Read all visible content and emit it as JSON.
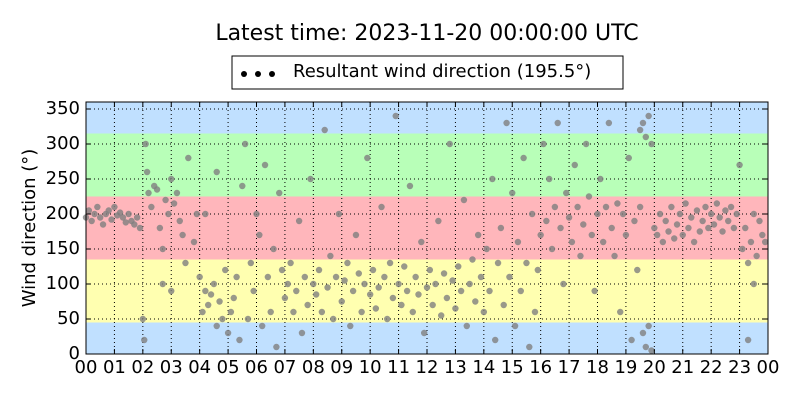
{
  "chart_data": {
    "type": "scatter",
    "title": "Latest time: 2023-11-20 00:00:00 UTC",
    "ylabel": "Wind direction (°)",
    "xlim": [
      0,
      24
    ],
    "ylim": [
      0,
      360
    ],
    "xticks": [
      {
        "value": 0,
        "label": "00"
      },
      {
        "value": 1,
        "label": "01"
      },
      {
        "value": 2,
        "label": "02"
      },
      {
        "value": 3,
        "label": "03"
      },
      {
        "value": 4,
        "label": "04"
      },
      {
        "value": 5,
        "label": "05"
      },
      {
        "value": 6,
        "label": "06"
      },
      {
        "value": 7,
        "label": "07"
      },
      {
        "value": 8,
        "label": "08"
      },
      {
        "value": 9,
        "label": "09"
      },
      {
        "value": 10,
        "label": "10"
      },
      {
        "value": 11,
        "label": "11"
      },
      {
        "value": 12,
        "label": "12"
      },
      {
        "value": 13,
        "label": "13"
      },
      {
        "value": 14,
        "label": "14"
      },
      {
        "value": 15,
        "label": "15"
      },
      {
        "value": 16,
        "label": "16"
      },
      {
        "value": 17,
        "label": "17"
      },
      {
        "value": 18,
        "label": "18"
      },
      {
        "value": 19,
        "label": "19"
      },
      {
        "value": 20,
        "label": "20"
      },
      {
        "value": 21,
        "label": "21"
      },
      {
        "value": 22,
        "label": "22"
      },
      {
        "value": 23,
        "label": "23"
      },
      {
        "value": 24,
        "label": "00"
      }
    ],
    "yticks": [
      0,
      50,
      100,
      150,
      200,
      250,
      300,
      350
    ],
    "grid": true,
    "legend": "top",
    "bands": [
      {
        "from": 0,
        "to": 45,
        "color": "#c0e0ff"
      },
      {
        "from": 45,
        "to": 135,
        "color": "#ffffb0"
      },
      {
        "from": 135,
        "to": 225,
        "color": "#ffb6bb"
      },
      {
        "from": 225,
        "to": 315,
        "color": "#b8ffb8"
      },
      {
        "from": 315,
        "to": 360,
        "color": "#c0e0ff"
      }
    ],
    "x": [
      0.0,
      0.1,
      0.2,
      0.3,
      0.4,
      0.5,
      0.6,
      0.7,
      0.8,
      0.9,
      1.0,
      1.1,
      1.2,
      1.3,
      1.4,
      1.5,
      1.6,
      1.7,
      1.8,
      1.9,
      2.0,
      2.05,
      2.1,
      2.15,
      2.2,
      2.3,
      2.4,
      2.5,
      2.6,
      2.7,
      2.8,
      2.9,
      3.0,
      3.1,
      3.2,
      3.3,
      3.4,
      3.5,
      3.0,
      2.7,
      3.6,
      3.8,
      3.9,
      4.0,
      4.1,
      4.2,
      4.3,
      4.4,
      4.5,
      4.6,
      4.7,
      4.8,
      4.9,
      4.2,
      4.6,
      5.0,
      5.1,
      5.2,
      5.3,
      5.4,
      5.5,
      5.6,
      5.7,
      5.8,
      5.9,
      6.0,
      6.1,
      6.2,
      6.3,
      6.4,
      6.5,
      6.6,
      6.7,
      6.8,
      6.9,
      7.0,
      7.1,
      7.2,
      7.3,
      7.4,
      7.5,
      7.6,
      7.7,
      7.8,
      7.9,
      8.0,
      8.1,
      8.2,
      8.3,
      8.4,
      8.5,
      8.6,
      8.7,
      8.8,
      8.9,
      9.0,
      9.1,
      9.2,
      9.3,
      9.4,
      9.5,
      9.6,
      9.7,
      9.8,
      9.9,
      10.0,
      10.1,
      10.2,
      10.3,
      10.4,
      10.5,
      10.6,
      10.7,
      10.8,
      10.9,
      11.0,
      11.1,
      11.2,
      11.3,
      11.4,
      11.5,
      11.6,
      11.7,
      11.8,
      11.9,
      12.0,
      12.1,
      12.2,
      12.3,
      12.4,
      12.5,
      12.6,
      12.7,
      12.8,
      12.9,
      13.0,
      13.1,
      13.2,
      13.3,
      13.4,
      13.5,
      13.6,
      13.7,
      13.8,
      13.9,
      14.0,
      14.1,
      14.2,
      14.3,
      14.4,
      14.5,
      14.6,
      14.7,
      14.8,
      14.9,
      15.0,
      15.1,
      15.2,
      15.3,
      15.4,
      15.5,
      15.6,
      15.7,
      15.8,
      15.9,
      16.0,
      16.1,
      16.2,
      16.3,
      16.4,
      16.5,
      16.6,
      16.7,
      16.8,
      16.9,
      17.0,
      17.1,
      17.2,
      17.3,
      17.4,
      17.5,
      17.6,
      17.7,
      17.8,
      17.9,
      18.0,
      18.1,
      18.2,
      18.3,
      18.4,
      18.5,
      18.6,
      18.7,
      18.8,
      18.9,
      19.0,
      19.1,
      19.2,
      19.3,
      19.4,
      19.5,
      19.6,
      19.7,
      19.8,
      19.9,
      19.6,
      19.7,
      19.8,
      19.9,
      19.5,
      20.0,
      20.1,
      20.2,
      20.3,
      20.4,
      20.5,
      20.6,
      20.7,
      20.8,
      20.9,
      21.0,
      21.1,
      21.2,
      21.3,
      21.4,
      21.5,
      21.6,
      21.7,
      21.8,
      21.9,
      22.0,
      22.1,
      22.2,
      22.3,
      22.4,
      22.5,
      22.6,
      22.7,
      22.8,
      22.9,
      23.0,
      23.1,
      23.2,
      23.3,
      23.4,
      23.5,
      23.6,
      23.7,
      23.8,
      23.9,
      23.3,
      23.5
    ],
    "series": [
      {
        "name": "Resultant wind direction (195.5°)",
        "color": "#808080",
        "values": [
          195,
          205,
          190,
          200,
          210,
          195,
          185,
          200,
          205,
          192,
          210,
          198,
          202,
          195,
          188,
          200,
          190,
          185,
          195,
          180,
          50,
          20,
          300,
          260,
          230,
          210,
          240,
          235,
          180,
          150,
          220,
          200,
          250,
          215,
          230,
          190,
          170,
          130,
          90,
          100,
          280,
          160,
          200,
          110,
          60,
          90,
          70,
          85,
          100,
          40,
          75,
          50,
          120,
          200,
          260,
          30,
          60,
          80,
          110,
          20,
          240,
          300,
          50,
          130,
          90,
          200,
          170,
          40,
          270,
          110,
          60,
          150,
          10,
          230,
          120,
          80,
          100,
          130,
          60,
          90,
          190,
          30,
          110,
          70,
          250,
          100,
          85,
          120,
          60,
          320,
          95,
          140,
          50,
          110,
          200,
          75,
          105,
          130,
          40,
          90,
          170,
          115,
          60,
          100,
          280,
          85,
          120,
          65,
          95,
          210,
          110,
          50,
          130,
          80,
          340,
          100,
          70,
          125,
          90,
          240,
          60,
          110,
          85,
          160,
          30,
          95,
          120,
          70,
          100,
          190,
          55,
          115,
          80,
          300,
          105,
          65,
          125,
          90,
          220,
          40,
          100,
          135,
          75,
          170,
          110,
          60,
          150,
          90,
          250,
          20,
          130,
          180,
          70,
          330,
          110,
          230,
          40,
          160,
          90,
          280,
          130,
          10,
          200,
          60,
          120,
          170,
          300,
          190,
          250,
          150,
          210,
          330,
          180,
          100,
          230,
          195,
          160,
          270,
          210,
          140,
          185,
          300,
          225,
          170,
          90,
          200,
          250,
          160,
          210,
          330,
          180,
          140,
          215,
          60,
          200,
          170,
          280,
          20,
          190,
          120,
          320,
          330,
          310,
          340,
          300,
          30,
          10,
          40,
          5,
          210,
          180,
          170,
          200,
          160,
          190,
          175,
          210,
          165,
          185,
          200,
          170,
          215,
          180,
          195,
          160,
          205,
          175,
          190,
          210,
          180,
          200,
          185,
          215,
          195,
          175,
          205,
          190,
          210,
          180,
          200,
          270,
          150,
          180,
          130,
          160,
          200,
          140,
          190,
          170,
          160,
          20,
          100
        ]
      }
    ]
  }
}
